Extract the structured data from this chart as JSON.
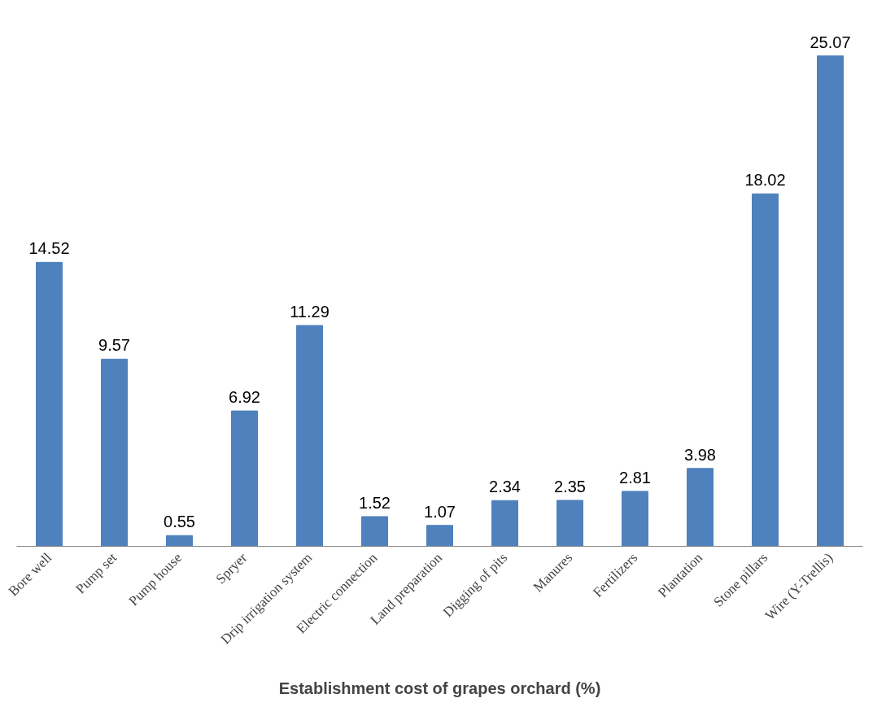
{
  "chart_data": {
    "type": "bar",
    "xlabel": "Establishment cost of grapes orchard (%)",
    "categories": [
      "Bore well",
      "Pump set",
      "Pump house",
      "Spryer",
      "Drip irrigation system",
      "Electric connection",
      "Land preparation",
      "Digging of pits",
      "Manures",
      "Fertilizers",
      "Plantation",
      "Stone pillars",
      "Wire (Y-Trellis)"
    ],
    "values": [
      14.52,
      9.57,
      0.55,
      6.92,
      11.29,
      1.52,
      1.07,
      2.34,
      2.35,
      2.81,
      3.98,
      18.02,
      25.07
    ],
    "color": "#4f81bd",
    "data_labels": true
  }
}
